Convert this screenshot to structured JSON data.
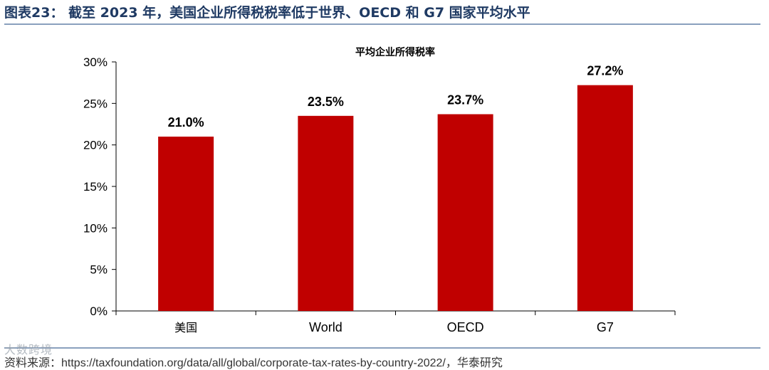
{
  "header": {
    "figure_title": "图表23：  截至 2023 年，美国企业所得税税率低于世界、OECD 和 G7 国家平均水平"
  },
  "footer": {
    "source": "资料来源：https://taxfoundation.org/data/all/global/corporate-tax-rates-by-country-2022/，华泰研究",
    "watermark": "大数跨境"
  },
  "colors": {
    "bar": "#c00000",
    "header_text": "#1f3a63",
    "rule": "#8aa0bd"
  },
  "chart_data": {
    "type": "bar",
    "title": "平均企业所得税率",
    "categories": [
      "美国",
      "World",
      "OECD",
      "G7"
    ],
    "values": [
      21.0,
      23.5,
      23.7,
      27.2
    ],
    "data_labels": [
      "21.0%",
      "23.5%",
      "23.7%",
      "27.2%"
    ],
    "ylim": [
      0,
      30
    ],
    "yticks": [
      0,
      5,
      10,
      15,
      20,
      25,
      30
    ],
    "ytick_labels": [
      "0%",
      "5%",
      "10%",
      "15%",
      "20%",
      "25%",
      "30%"
    ],
    "xlabel": "",
    "ylabel": "",
    "grid": false,
    "legend": "none"
  }
}
